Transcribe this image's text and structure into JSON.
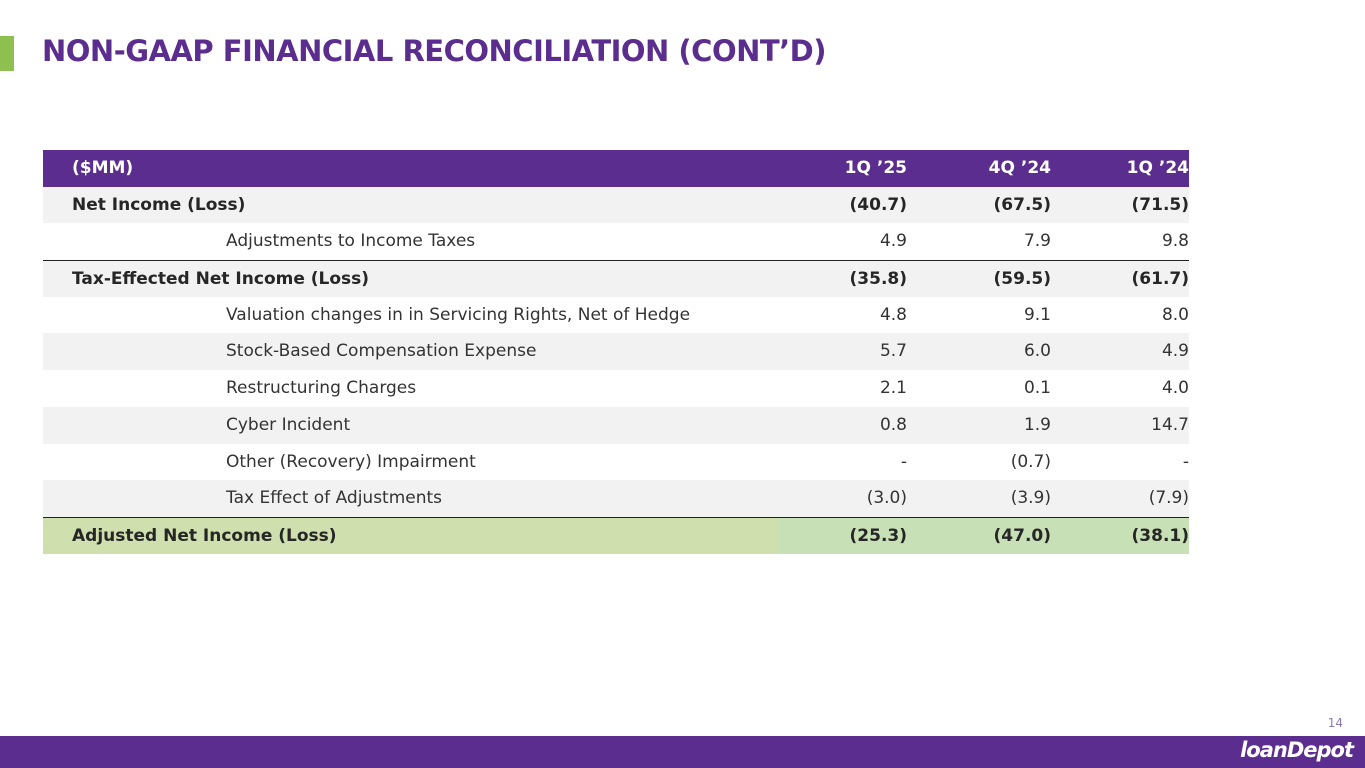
{
  "header": {
    "title": "NON-GAAP FINANCIAL RECONCILIATION (CONT’D)"
  },
  "table": {
    "columns": [
      "($MM)",
      "1Q ’25",
      "4Q ’24",
      "1Q ’24"
    ],
    "rows": [
      [
        "Net Income (Loss)",
        "(40.7)",
        "(67.5)",
        "(71.5)"
      ],
      [
        "Adjustments to Income Taxes",
        "4.9",
        "7.9",
        "9.8"
      ],
      [
        "Tax-Effected Net  Income (Loss)",
        "(35.8)",
        "(59.5)",
        "(61.7)"
      ],
      [
        "Valuation changes in in Servicing Rights, Net of Hedge",
        "4.8",
        "9.1",
        "8.0"
      ],
      [
        "Stock-Based Compensation Expense",
        "5.7",
        "6.0",
        "4.9"
      ],
      [
        "Restructuring Charges",
        "2.1",
        "0.1",
        "4.0"
      ],
      [
        "Cyber Incident",
        "0.8",
        "1.9",
        "14.7"
      ],
      [
        "Other (Recovery) Impairment",
        "-",
        "(0.7)",
        "-"
      ],
      [
        "Tax Effect of Adjustments",
        "(3.0)",
        "(3.9)",
        "(7.9)"
      ],
      [
        "Adjusted Net Income (Loss)",
        "(25.3)",
        "(47.0)",
        "(38.1)"
      ]
    ]
  },
  "footer": {
    "page": "14",
    "logo": "loanDepot"
  }
}
